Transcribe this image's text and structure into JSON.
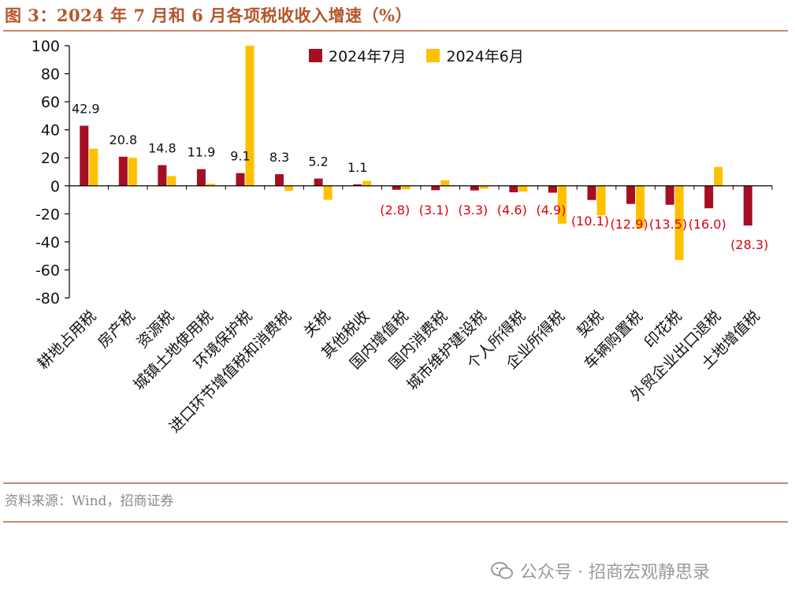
{
  "title": "图 3：2024 年 7 月和 6 月各项税收收入增速（%）",
  "source": "资料来源：Wind，招商证券",
  "watermark": "公众号 · 招商宏观静思录",
  "colors": {
    "series1": "#a50e23",
    "series2": "#ffc000",
    "neg_label": "#d9000d",
    "accent": "#b5562b"
  },
  "chart_data": {
    "type": "bar",
    "title": "2024 年 7 月和 6 月各项税收收入增速（%）",
    "ylim": [
      -80,
      100
    ],
    "yticks": [
      100,
      80,
      60,
      40,
      20,
      0,
      -20,
      -40,
      -60,
      -80
    ],
    "legend_position": "top-center",
    "categories": [
      "耕地占用税",
      "房产税",
      "资源税",
      "城镇土地使用税",
      "环境保护税",
      "进口环节增值税和消费税",
      "关税",
      "其他税收",
      "国内增值税",
      "国内消费税",
      "城市维护建设税",
      "个人所得税",
      "企业所得税",
      "契税",
      "车辆购置税",
      "印花税",
      "外贸企业出口退税",
      "土地增值税"
    ],
    "series": [
      {
        "name": "2024年7月",
        "values": [
          42.9,
          20.8,
          14.8,
          11.9,
          9.1,
          8.3,
          5.2,
          1.1,
          -2.8,
          -3.1,
          -3.3,
          -4.6,
          -4.9,
          -10.1,
          -12.9,
          -13.5,
          -16.0,
          -28.3
        ]
      },
      {
        "name": "2024年6月",
        "values": [
          26.5,
          20.0,
          7.0,
          1.5,
          100.0,
          -3.5,
          -10.0,
          3.5,
          -2.5,
          4.0,
          -2.0,
          -4.0,
          -27.0,
          -21.0,
          -30.0,
          -53.0,
          13.5,
          0.0
        ]
      }
    ],
    "data_labels": [
      "42.9",
      "20.8",
      "14.8",
      "11.9",
      "9.1",
      "8.3",
      "5.2",
      "1.1",
      "(2.8)",
      "(3.1)",
      "(3.3)",
      "(4.6)",
      "(4.9)",
      "(10.1)",
      "(12.9)",
      "(13.5)",
      "(16.0)",
      "(28.3)"
    ]
  }
}
